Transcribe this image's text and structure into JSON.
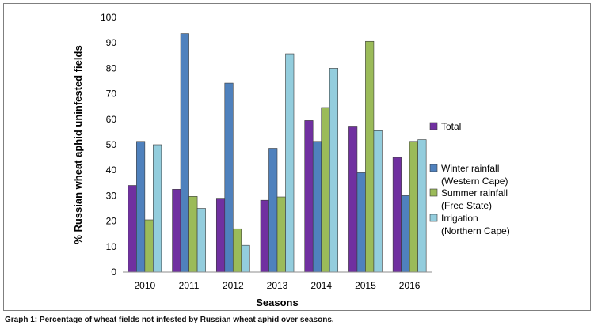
{
  "caption": "Graph 1: Percentage of wheat fields not infested by Russian wheat aphid over seasons.",
  "chart_data": {
    "type": "bar",
    "xlabel": "Seasons",
    "ylabel": "% Russian wheat aphid uninfested fields",
    "ylim": [
      0,
      100
    ],
    "ytick_step": 10,
    "grid": false,
    "legend_position": "right",
    "categories": [
      "2010",
      "2011",
      "2012",
      "2013",
      "2014",
      "2015",
      "2016"
    ],
    "series": [
      {
        "name": "Total",
        "legend_lines": [
          "Total"
        ],
        "color": "#7030a0",
        "values": [
          34,
          32.5,
          29,
          28.2,
          59.5,
          57.3,
          45
        ]
      },
      {
        "name": "Winter rainfall (Western Cape)",
        "legend_lines": [
          "Winter rainfall",
          "(Western Cape)"
        ],
        "color": "#4f81bd",
        "values": [
          51.3,
          93.6,
          74.2,
          48.6,
          51.3,
          39,
          30
        ]
      },
      {
        "name": "Summer rainfall (Free State)",
        "legend_lines": [
          "Summer rainfall",
          "(Free State)"
        ],
        "color": "#9bbb59",
        "values": [
          20.5,
          29.7,
          17,
          29.5,
          64.6,
          90.6,
          51.3
        ]
      },
      {
        "name": "Irrigation (Northern Cape)",
        "legend_lines": [
          "Irrigation",
          "(Northern Cape)"
        ],
        "color": "#93cddd",
        "values": [
          50,
          25,
          10.5,
          85.7,
          80,
          55.5,
          52
        ]
      }
    ]
  }
}
